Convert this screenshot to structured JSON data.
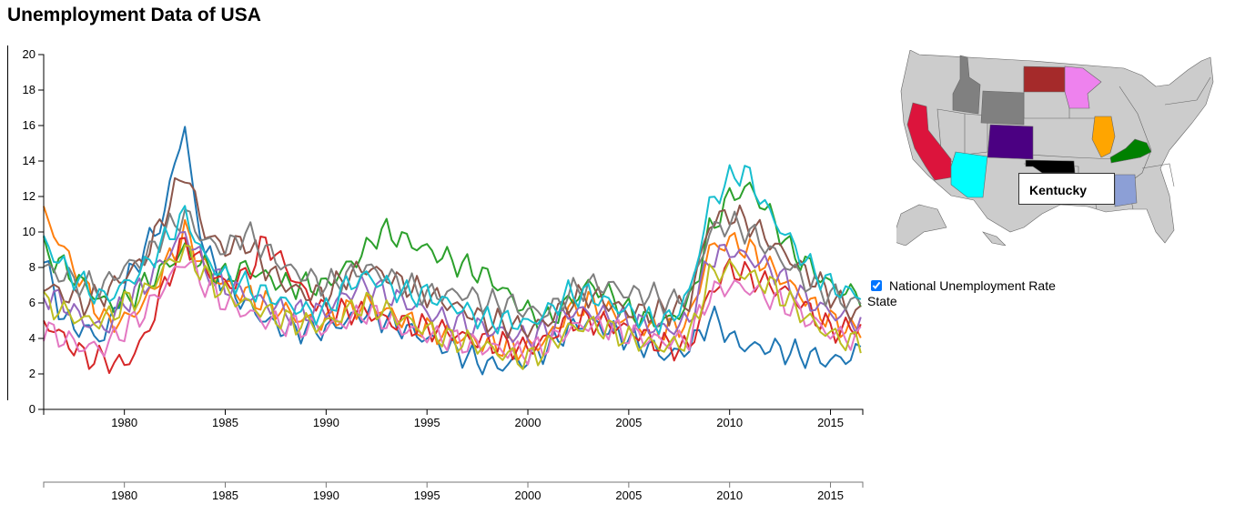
{
  "page": {
    "title": "Unemployment Data of USA"
  },
  "legend": {
    "checkbox_label": "National Unemployment Rate",
    "checkbox_checked": true,
    "state_label": "State"
  },
  "map": {
    "tooltip_state": "Kentucky",
    "highlighted_states": [
      {
        "name": "California",
        "color": "#dc143c"
      },
      {
        "name": "Arizona",
        "color": "#00ffff"
      },
      {
        "name": "Idaho",
        "color": "#808080"
      },
      {
        "name": "Wyoming",
        "color": "#808080"
      },
      {
        "name": "Colorado",
        "color": "#4b0082"
      },
      {
        "name": "North Dakota",
        "color": "#a52a2a"
      },
      {
        "name": "Minnesota",
        "color": "#ee82ee"
      },
      {
        "name": "Illinois",
        "color": "#ffa500"
      },
      {
        "name": "Kentucky",
        "color": "#008000"
      },
      {
        "name": "Oklahoma",
        "color": "#000000"
      },
      {
        "name": "Alabama",
        "color": "#8c9fd6"
      }
    ],
    "base_color": "#cccccc"
  },
  "chart_data": {
    "type": "line",
    "title": "",
    "xlabel": "",
    "ylabel": "",
    "xlim": [
      1976,
      2016.6
    ],
    "ylim": [
      0,
      20
    ],
    "y_ticks": [
      "0",
      "2",
      "4",
      "6",
      "8",
      "10",
      "12",
      "14",
      "16",
      "18",
      "20"
    ],
    "x_ticks": [
      "1980",
      "1985",
      "1990",
      "1995",
      "2000",
      "2005",
      "2010",
      "2015"
    ],
    "context_x_ticks": [
      "1980",
      "1985",
      "1990",
      "1995",
      "2000",
      "2005",
      "2010",
      "2015"
    ],
    "series": [
      {
        "color": "#1f77b4",
        "x": [
          1976,
          1977,
          1978,
          1979,
          1980,
          1981,
          1982,
          1982.5,
          1983,
          1983.4,
          1984,
          1985,
          1986,
          1987,
          1988,
          1989,
          1990,
          1991,
          1992,
          1993,
          1994,
          1995,
          1996,
          1997,
          1998,
          1999,
          2000,
          2001,
          2002,
          2003,
          2004,
          2005,
          2006,
          2007,
          2008,
          2009,
          2009.5,
          2010,
          2011,
          2012,
          2013,
          2014,
          2015,
          2016,
          2016.5
        ],
        "y": [
          8.5,
          5,
          4.5,
          4,
          7,
          9,
          11,
          14,
          16,
          12,
          9,
          7,
          6,
          5,
          4.5,
          4.5,
          4.5,
          5,
          5.5,
          5,
          4.5,
          4,
          3.5,
          3,
          2.5,
          2.5,
          2.8,
          3.5,
          4.5,
          5,
          4.5,
          4,
          3.5,
          3,
          3.5,
          5,
          5,
          4,
          3.5,
          3.5,
          3.2,
          3,
          2.7,
          3,
          3.3
        ]
      },
      {
        "color": "#ff7f0e",
        "x": [
          1976,
          1977,
          1978,
          1979,
          1980,
          1981,
          1982,
          1983,
          1984,
          1985,
          1986,
          1987,
          1988,
          1989,
          1990,
          1991,
          1992,
          1993,
          1994,
          1995,
          1996,
          1997,
          1998,
          1999,
          2000,
          2001,
          2002,
          2003,
          2004,
          2005,
          2006,
          2007,
          2008,
          2009,
          2010,
          2011,
          2012,
          2013,
          2014,
          2015,
          2016,
          2016.5
        ],
        "y": [
          11,
          9,
          7,
          5,
          5,
          6,
          8,
          10,
          8,
          7,
          6.5,
          6,
          5.5,
          5,
          5,
          5.5,
          6,
          5.5,
          5,
          4.5,
          4.2,
          4,
          3.7,
          3.5,
          3.4,
          4,
          5.5,
          6,
          5.5,
          5,
          4.5,
          4.5,
          5,
          9,
          9.5,
          9,
          8,
          7,
          6,
          5,
          4.5,
          4.5
        ]
      },
      {
        "color": "#2ca02c",
        "x": [
          1976,
          1977,
          1978,
          1979,
          1980,
          1981,
          1982,
          1983,
          1984,
          1985,
          1986,
          1987,
          1988,
          1989,
          1990,
          1991,
          1992,
          1992.6,
          1993,
          1994,
          1995,
          1996,
          1997,
          1998,
          1999,
          2000,
          2001,
          2002,
          2003,
          2004,
          2005,
          2006,
          2007,
          2008,
          2009,
          2010,
          2011,
          2012,
          2013,
          2014,
          2015,
          2016,
          2016.5
        ],
        "y": [
          9,
          8,
          7,
          6,
          6,
          7,
          8,
          9,
          8,
          7.5,
          8,
          7.5,
          7,
          7,
          7,
          8,
          9,
          10,
          10,
          9.5,
          9,
          8.5,
          8,
          7.5,
          6.5,
          5.5,
          5,
          6,
          7,
          6.5,
          5.5,
          5,
          5,
          6,
          10,
          12,
          12.5,
          11,
          9,
          8,
          7,
          6.5,
          6.5
        ]
      },
      {
        "color": "#d62728",
        "x": [
          1976,
          1977,
          1978,
          1979,
          1980,
          1981,
          1982,
          1983,
          1984,
          1985,
          1986,
          1987,
          1988,
          1989,
          1990,
          1991,
          1992,
          1993,
          1994,
          1995,
          1996,
          1997,
          1998,
          1999,
          2000,
          2001,
          2002,
          2003,
          2004,
          2005,
          2006,
          2007,
          2008,
          2009,
          2010,
          2011,
          2012,
          2013,
          2014,
          2015,
          2016,
          2016.5
        ],
        "y": [
          5,
          4,
          3,
          2.8,
          2.5,
          4,
          7,
          9.5,
          8,
          7,
          7.5,
          9.5,
          8,
          6.5,
          5.5,
          5.5,
          5.5,
          5,
          4.8,
          4.6,
          4.4,
          4,
          3.8,
          3.6,
          3.4,
          4,
          5,
          5,
          4.8,
          4.5,
          4,
          3.5,
          3.5,
          6.5,
          8,
          7.5,
          7,
          6.5,
          5.5,
          4.5,
          4.5,
          4.8
        ]
      },
      {
        "color": "#9467bd",
        "x": [
          1976,
          1977,
          1978,
          1979,
          1980,
          1981,
          1982,
          1983,
          1984,
          1985,
          1986,
          1987,
          1988,
          1989,
          1990,
          1991,
          1992,
          1993,
          1994,
          1995,
          1996,
          1997,
          1998,
          1999,
          2000,
          2001,
          2002,
          2003,
          2004,
          2005,
          2006,
          2007,
          2008,
          2009,
          2010,
          2011,
          2012,
          2013,
          2014,
          2015,
          2016,
          2016.5
        ],
        "y": [
          6.5,
          6,
          5,
          4.5,
          6,
          7,
          8.5,
          10,
          8,
          7,
          6.5,
          6,
          5.5,
          5.5,
          5.5,
          6.5,
          7,
          6.5,
          6,
          5.5,
          5,
          4.8,
          4.5,
          4.3,
          4,
          4.5,
          5.5,
          5.5,
          5.2,
          5,
          4.7,
          4.5,
          5,
          8.5,
          9,
          8.5,
          8,
          7,
          6,
          5.5,
          5,
          5
        ]
      },
      {
        "color": "#8c564b",
        "x": [
          1976,
          1977,
          1978,
          1979,
          1980,
          1981,
          1982,
          1983,
          1984,
          1985,
          1986,
          1987,
          1988,
          1989,
          1990,
          1991,
          1992,
          1993,
          1994,
          1995,
          1996,
          1997,
          1998,
          1999,
          2000,
          2001,
          2002,
          2003,
          2004,
          2005,
          2006,
          2007,
          2008,
          2009,
          2010,
          2011,
          2012,
          2013,
          2014,
          2015,
          2016,
          2016.5
        ],
        "y": [
          7,
          6.5,
          6,
          6.5,
          7.5,
          8.5,
          11,
          13.5,
          10,
          9,
          9.5,
          8,
          7,
          6.5,
          6.5,
          7.5,
          8,
          7.5,
          7,
          6.5,
          6,
          5.5,
          5,
          4.8,
          4.5,
          5,
          6,
          6.5,
          6,
          5.5,
          5.5,
          5.5,
          6,
          10.5,
          11,
          10.5,
          9.5,
          8.5,
          7.5,
          6.5,
          5.5,
          5.5
        ]
      },
      {
        "color": "#e377c2",
        "x": [
          1976,
          1977,
          1978,
          1979,
          1980,
          1981,
          1982,
          1983,
          1984,
          1985,
          1986,
          1987,
          1988,
          1989,
          1990,
          1991,
          1992,
          1993,
          1994,
          1995,
          1996,
          1997,
          1998,
          1999,
          2000,
          2001,
          2002,
          2003,
          2004,
          2005,
          2006,
          2007,
          2008,
          2009,
          2010,
          2011,
          2012,
          2013,
          2014,
          2015,
          2016,
          2016.5
        ],
        "y": [
          4.5,
          4,
          3.5,
          3.5,
          4.5,
          5.5,
          7,
          8.5,
          7,
          6,
          5.5,
          5,
          4.8,
          4.6,
          4.6,
          5,
          5.5,
          5,
          4.5,
          4.2,
          4,
          3.7,
          3.5,
          3.3,
          3.2,
          3.7,
          4.5,
          4.8,
          4.6,
          4.2,
          4,
          3.8,
          4,
          6.5,
          7,
          6.8,
          6.3,
          5.8,
          5,
          4.3,
          4,
          4
        ]
      },
      {
        "color": "#7f7f7f",
        "x": [
          1976,
          1977,
          1978,
          1979,
          1980,
          1981,
          1982,
          1983,
          1984,
          1985,
          1986,
          1987,
          1988,
          1989,
          1990,
          1991,
          1992,
          1993,
          1994,
          1995,
          1996,
          1997,
          1998,
          1999,
          2000,
          2001,
          2002,
          2003,
          2004,
          2005,
          2006,
          2007,
          2008,
          2009,
          2010,
          2011,
          2012,
          2013,
          2014,
          2015,
          2016,
          2016.5
        ],
        "y": [
          8,
          7.5,
          7,
          7,
          8,
          8.5,
          10,
          11,
          9.5,
          9,
          10,
          9,
          8,
          7.5,
          7,
          7.5,
          8,
          7.5,
          7,
          6.5,
          6.5,
          6.5,
          6,
          6,
          5.5,
          5.5,
          6.5,
          7,
          7,
          6.5,
          6.5,
          6,
          6.5,
          10,
          10.5,
          10,
          9,
          8,
          7,
          6.5,
          6,
          6
        ]
      },
      {
        "color": "#bcbd22",
        "x": [
          1976,
          1977,
          1978,
          1979,
          1980,
          1981,
          1982,
          1983,
          1984,
          1985,
          1986,
          1987,
          1988,
          1989,
          1990,
          1991,
          1992,
          1993,
          1994,
          1995,
          1996,
          1997,
          1998,
          1999,
          2000,
          2001,
          2002,
          2003,
          2004,
          2005,
          2006,
          2007,
          2008,
          2009,
          2010,
          2011,
          2012,
          2013,
          2014,
          2015,
          2016,
          2016.5
        ],
        "y": [
          6,
          5.5,
          5,
          5,
          6,
          6.5,
          8,
          9,
          7.5,
          6.5,
          6,
          5.5,
          5,
          4.8,
          4.8,
          5.5,
          6,
          5.5,
          5,
          4.5,
          4,
          3.8,
          3.5,
          3,
          2.8,
          3.5,
          4.5,
          4.8,
          4.5,
          4,
          3.7,
          3.5,
          4,
          7.5,
          8,
          7.5,
          7,
          6,
          5,
          4.2,
          3.8,
          3.8
        ]
      },
      {
        "color": "#17becf",
        "x": [
          1976,
          1977,
          1978,
          1979,
          1980,
          1981,
          1982,
          1983,
          1984,
          1985,
          1986,
          1987,
          1988,
          1989,
          1990,
          1991,
          1992,
          1993,
          1994,
          1995,
          1996,
          1997,
          1998,
          1999,
          2000,
          2001,
          2002,
          2003,
          2004,
          2005,
          2006,
          2007,
          2008,
          2009,
          2010,
          2010.7,
          2011,
          2012,
          2013,
          2014,
          2015,
          2016,
          2016.5
        ],
        "y": [
          9.5,
          8,
          7,
          6.2,
          7,
          8,
          9.5,
          11,
          8.5,
          7.5,
          7,
          6.5,
          6,
          5.5,
          5.5,
          7,
          7.5,
          7,
          6.5,
          6.5,
          6,
          5.5,
          5,
          5,
          4.8,
          5.5,
          6.5,
          6.5,
          6,
          5.5,
          5,
          5,
          6.5,
          11.5,
          13,
          13.5,
          13,
          11,
          9.5,
          8,
          7,
          6.5,
          6.5
        ]
      }
    ]
  }
}
